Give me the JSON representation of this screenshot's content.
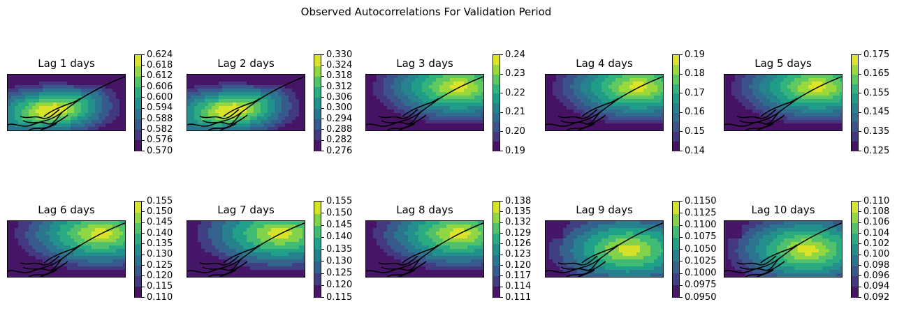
{
  "title": "Observed Autocorrelations For Validation Period",
  "chart_data": {
    "type": "heatmap",
    "title": "Observed Autocorrelations For Validation Period",
    "colormap": "viridis",
    "panels": [
      {
        "title": "Lag 1 days",
        "vmin": 0.57,
        "vmax": 0.624,
        "ticks": [
          "0.624",
          "0.618",
          "0.612",
          "0.606",
          "0.600",
          "0.594",
          "0.588",
          "0.582",
          "0.576",
          "0.570"
        ],
        "levels": 9,
        "pattern": "southwest"
      },
      {
        "title": "Lag 2 days",
        "vmin": 0.276,
        "vmax": 0.33,
        "ticks": [
          "0.330",
          "0.324",
          "0.318",
          "0.312",
          "0.306",
          "0.300",
          "0.294",
          "0.288",
          "0.282",
          "0.276"
        ],
        "levels": 9,
        "pattern": "southwest"
      },
      {
        "title": "Lag 3 days",
        "vmin": 0.19,
        "vmax": 0.24,
        "ticks": [
          "0.24",
          "0.23",
          "0.22",
          "0.21",
          "0.20",
          "0.19"
        ],
        "levels": 10,
        "pattern": "northeast"
      },
      {
        "title": "Lag 4 days",
        "vmin": 0.14,
        "vmax": 0.19,
        "ticks": [
          "0.19",
          "0.18",
          "0.17",
          "0.16",
          "0.15",
          "0.14"
        ],
        "levels": 10,
        "pattern": "northeast"
      },
      {
        "title": "Lag 5 days",
        "vmin": 0.125,
        "vmax": 0.175,
        "ticks": [
          "0.175",
          "0.165",
          "0.155",
          "0.145",
          "0.135",
          "0.125"
        ],
        "levels": 10,
        "pattern": "northeast"
      },
      {
        "title": "Lag 6 days",
        "vmin": 0.11,
        "vmax": 0.155,
        "ticks": [
          "0.155",
          "0.150",
          "0.145",
          "0.140",
          "0.135",
          "0.130",
          "0.125",
          "0.120",
          "0.115",
          "0.110"
        ],
        "levels": 9,
        "pattern": "northeast"
      },
      {
        "title": "Lag 7 days",
        "vmin": 0.115,
        "vmax": 0.155,
        "ticks": [
          "0.155",
          "0.150",
          "0.145",
          "0.140",
          "0.135",
          "0.130",
          "0.125",
          "0.120",
          "0.115"
        ],
        "levels": 8,
        "pattern": "northeast"
      },
      {
        "title": "Lag 8 days",
        "vmin": 0.111,
        "vmax": 0.138,
        "ticks": [
          "0.138",
          "0.135",
          "0.132",
          "0.129",
          "0.126",
          "0.123",
          "0.120",
          "0.117",
          "0.114",
          "0.111"
        ],
        "levels": 9,
        "pattern": "northeast"
      },
      {
        "title": "Lag 9 days",
        "vmin": 0.095,
        "vmax": 0.115,
        "ticks": [
          "0.1150",
          "0.1125",
          "0.1100",
          "0.1075",
          "0.1050",
          "0.1025",
          "0.1000",
          "0.0975",
          "0.0950"
        ],
        "levels": 8,
        "pattern": "center"
      },
      {
        "title": "Lag 10 days",
        "vmin": 0.092,
        "vmax": 0.11,
        "ticks": [
          "0.110",
          "0.108",
          "0.106",
          "0.104",
          "0.102",
          "0.100",
          "0.098",
          "0.096",
          "0.094",
          "0.092"
        ],
        "levels": 9,
        "pattern": "center"
      }
    ]
  }
}
